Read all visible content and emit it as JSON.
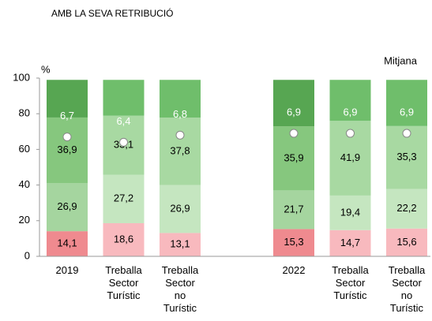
{
  "chart_data": {
    "type": "stacked_bar",
    "title": "AMB LA SEVA RETRIBUCIÓ",
    "y_label": "%",
    "categories": [
      "2019",
      "Treballa Sector Turístic",
      "Treballa Sector no Turístic",
      "2022",
      "Treballa Sector Turístic",
      "Treballa Sector no Turístic"
    ],
    "series": [
      {
        "colors": [
          "#ef8a8f",
          "#f8b9be",
          "#f8b9be",
          "#ef8a8f",
          "#f8b9be",
          "#f8b9be"
        ],
        "values": [
          14.1,
          18.6,
          13.1,
          15.3,
          14.7,
          15.6
        ],
        "value_labels": [
          "14,1",
          "18,6",
          "13,1",
          "15,3",
          "14,7",
          "15,6"
        ]
      },
      {
        "colors": [
          "#a5d59f",
          "#c5e6c0",
          "#c5e6c0",
          "#a5d59f",
          "#c5e6c0",
          "#c5e6c0"
        ],
        "values": [
          26.9,
          27.2,
          26.9,
          21.7,
          19.4,
          22.2
        ],
        "value_labels": [
          "26,9",
          "27,2",
          "26,9",
          "21,7",
          "19,4",
          "22,2"
        ]
      },
      {
        "colors": [
          "#86c77e",
          "#a8d9a2",
          "#a8d9a2",
          "#86c77e",
          "#a8d9a2",
          "#a8d9a2"
        ],
        "values": [
          36.9,
          33.1,
          37.8,
          35.9,
          41.9,
          35.3
        ],
        "value_labels": [
          "36,9",
          "33,1",
          "37,8",
          "35,9",
          "41,9",
          "35,3"
        ]
      },
      {
        "colors": [
          "#57a652",
          "#6fbe6b",
          "#6fbe6b",
          "#57a652",
          "#6fbe6b",
          "#6fbe6b"
        ],
        "values": [
          21.1,
          20.1,
          21.2,
          26.1,
          23.0,
          25.9
        ]
      }
    ],
    "mean": {
      "name": "Mitjana",
      "axis": "y2",
      "values": [
        6.7,
        6.4,
        6.8,
        6.9,
        6.9,
        6.9
      ],
      "value_labels": [
        "6,7",
        "6,4",
        "6,8",
        "6,9",
        "6,9",
        "6,9"
      ]
    },
    "ylim": [
      0,
      100
    ],
    "yticks": [
      0,
      20,
      40,
      60,
      80,
      100
    ],
    "y2lim": [
      0,
      10
    ]
  }
}
